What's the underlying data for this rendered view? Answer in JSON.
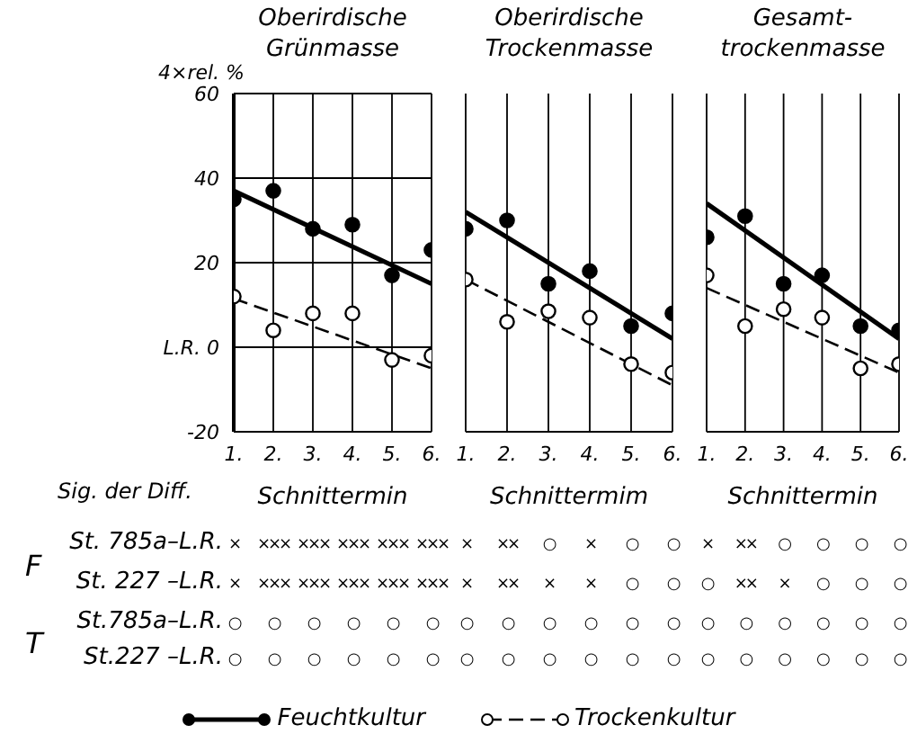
{
  "chart_data": [
    {
      "type": "scatter",
      "title": "Oberirdische\nGrünmasse",
      "ylabel": "4×rel. %",
      "xlabel": "Schnittermin",
      "xlim": [
        1,
        6
      ],
      "xticks": [
        {
          "value": 1,
          "label": "1."
        },
        {
          "value": 2,
          "label": "2."
        },
        {
          "value": 3,
          "label": "3."
        },
        {
          "value": 4,
          "label": "4."
        },
        {
          "value": 5,
          "label": "5."
        },
        {
          "value": 6,
          "label": "6."
        }
      ],
      "ylim": [
        -20,
        60
      ],
      "yticks": [
        -20,
        {
          "value": 0,
          "label": "L.R. 0"
        },
        20,
        40,
        60
      ],
      "grid": true,
      "marker": "circle",
      "legend": "bottom",
      "series": [
        {
          "name": "Feuchtkultur",
          "type": "scatter",
          "color": "#000000",
          "x": [
            1,
            2,
            3,
            4,
            5,
            6
          ],
          "values": [
            35,
            37,
            28,
            29,
            17,
            23
          ]
        },
        {
          "name": "Trockenkultur",
          "type": "scatter",
          "color": "#000000",
          "x": [
            1,
            2,
            3,
            4,
            5,
            6
          ],
          "values": [
            12,
            4,
            8,
            8,
            -3,
            -2
          ]
        },
        {
          "type": "line",
          "color": "#000000",
          "line_style": "solid",
          "marker": "none",
          "x": [
            1,
            6
          ],
          "values": [
            37,
            15
          ]
        },
        {
          "type": "line",
          "color": "#000000",
          "line_style": "dashed",
          "marker": "none",
          "x": [
            1,
            6
          ],
          "values": [
            11.5,
            -5
          ]
        }
      ]
    },
    {
      "type": "scatter",
      "title": "Oberirdische\nTrockenmasse",
      "xlabel": "Schnittermim",
      "xlim": [
        1,
        6
      ],
      "xticks": [
        {
          "value": 1,
          "label": "1."
        },
        {
          "value": 2,
          "label": "2."
        },
        {
          "value": 3,
          "label": "3."
        },
        {
          "value": 4,
          "label": "4."
        },
        {
          "value": 5,
          "label": "5."
        },
        {
          "value": 6,
          "label": "6."
        }
      ],
      "ylim": [
        -20,
        60
      ],
      "yticks": [
        -20,
        0,
        20,
        40,
        60
      ],
      "tick_labels": "x",
      "grid": true,
      "marker": "circle",
      "series": [
        {
          "type": "scatter",
          "color": "#000000",
          "x": [
            1,
            2,
            3,
            4,
            5,
            6
          ],
          "values": [
            28,
            30,
            15,
            18,
            5,
            8
          ]
        },
        {
          "type": "scatter",
          "color": "#000000",
          "x": [
            1,
            2,
            3,
            4,
            5,
            6
          ],
          "values": [
            16,
            6,
            8.5,
            7,
            -4,
            -6
          ]
        },
        {
          "type": "line",
          "color": "#000000",
          "line_style": "solid",
          "marker": "none",
          "x": [
            1,
            6
          ],
          "values": [
            32,
            2
          ]
        },
        {
          "type": "line",
          "color": "#000000",
          "line_style": "dashed",
          "marker": "none",
          "x": [
            1,
            6
          ],
          "values": [
            16,
            -9
          ]
        }
      ]
    },
    {
      "type": "scatter",
      "title": "Gesamt-\ntrockenmasse",
      "xlabel": "Schnittermin",
      "xlim": [
        1,
        6
      ],
      "xticks": [
        {
          "value": 1,
          "label": "1."
        },
        {
          "value": 2,
          "label": "2."
        },
        {
          "value": 3,
          "label": "3."
        },
        {
          "value": 4,
          "label": "4."
        },
        {
          "value": 5,
          "label": "5."
        },
        {
          "value": 6,
          "label": "6."
        }
      ],
      "ylim": [
        -20,
        60
      ],
      "yticks": [
        -20,
        0,
        20,
        40,
        60
      ],
      "tick_labels": "x",
      "grid": true,
      "marker": "circle",
      "series": [
        {
          "type": "scatter",
          "color": "#000000",
          "x": [
            1,
            2,
            3,
            4,
            5,
            6
          ],
          "values": [
            26,
            31,
            15,
            17,
            5,
            4
          ]
        },
        {
          "type": "scatter",
          "color": "#000000",
          "x": [
            1,
            2,
            3,
            4,
            5,
            6
          ],
          "values": [
            17,
            5,
            9,
            7,
            -5,
            -4
          ]
        },
        {
          "type": "line",
          "color": "#000000",
          "line_style": "solid",
          "marker": "none",
          "x": [
            1,
            6
          ],
          "values": [
            34,
            2
          ]
        },
        {
          "type": "line",
          "color": "#000000",
          "line_style": "dashed",
          "marker": "none",
          "x": [
            1,
            6
          ],
          "values": [
            14,
            -6
          ]
        }
      ]
    },
    {
      "type": "other",
      "title": "Sig. der Diff.",
      "annotations": [
        "F",
        "T"
      ],
      "y_categories": [
        "St. 785a–L.R.",
        "St. 227 –L.R.",
        "St.785a–L.R.",
        "St.227 –L.R."
      ],
      "cell_labels": [
        [
          "×",
          "×××",
          "×××",
          "×××",
          "×××",
          "×××",
          "×",
          "××",
          "○",
          "×",
          "○",
          "○",
          "×",
          "××",
          "○",
          "○",
          "○",
          "○"
        ],
        [
          "×",
          "×××",
          "×××",
          "×××",
          "×××",
          "×××",
          "×",
          "××",
          "×",
          "×",
          "○",
          "○",
          "○",
          "××",
          "×",
          "○",
          "○",
          "○"
        ],
        [
          "○",
          "○",
          "○",
          "○",
          "○",
          "○",
          "○",
          "○",
          "○",
          "○",
          "○",
          "○",
          "○",
          "○",
          "○",
          "○",
          "○",
          "○"
        ],
        [
          "○",
          "○",
          "○",
          "○",
          "○",
          "○",
          "○",
          "○",
          "○",
          "○",
          "○",
          "○",
          "○",
          "○",
          "○",
          "○",
          "○",
          "○"
        ]
      ]
    }
  ]
}
